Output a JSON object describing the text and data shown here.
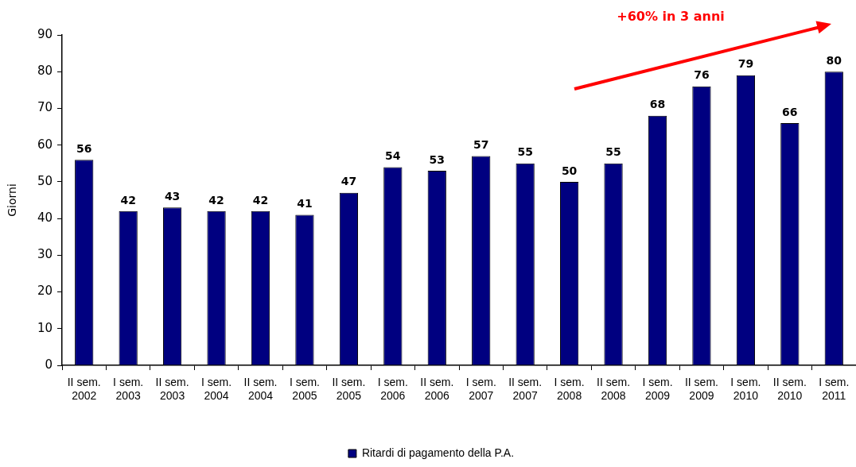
{
  "chart_data": {
    "type": "bar",
    "categories": [
      "II sem. 2002",
      "I sem. 2003",
      "II sem. 2003",
      "I sem. 2004",
      "II sem. 2004",
      "I sem. 2005",
      "II sem. 2005",
      "I sem. 2006",
      "II sem. 2006",
      "I sem. 2007",
      "II sem. 2007",
      "I sem. 2008",
      "II sem. 2008",
      "I sem. 2009",
      "II sem. 2009",
      "I sem. 2010",
      "II sem. 2010",
      "I sem. 2011"
    ],
    "series": [
      {
        "name": "Ritardi di pagamento della P.A.",
        "color": "#000080",
        "values": [
          56,
          42,
          43,
          42,
          42,
          41,
          47,
          54,
          53,
          57,
          55,
          50,
          55,
          68,
          76,
          79,
          66,
          80
        ]
      }
    ],
    "ylabel": "Giorni",
    "ylim": [
      0,
      90
    ],
    "yticks": [
      0,
      10,
      20,
      30,
      40,
      50,
      60,
      70,
      80,
      90
    ],
    "data_labels": true,
    "legend": "bottom",
    "annotations": [
      "+60% in 3 anni"
    ]
  }
}
